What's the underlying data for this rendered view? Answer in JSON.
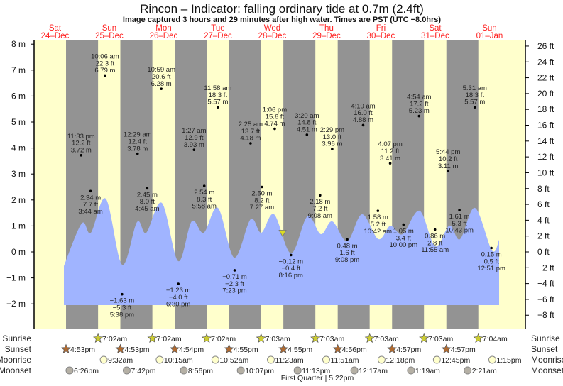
{
  "title": "Rincon – Indicator: falling  ordinary tide at 0.7m (2.4ft)",
  "subtitle": "Image captured 3 hours and 29 minutes after high water. Times are PST (UTC −8.0hrs)",
  "days": [
    {
      "dow": "Sat",
      "date": "24–Dec"
    },
    {
      "dow": "Sun",
      "date": "25–Dec"
    },
    {
      "dow": "Mon",
      "date": "26–Dec"
    },
    {
      "dow": "Tue",
      "date": "27–Dec"
    },
    {
      "dow": "Wed",
      "date": "28–Dec"
    },
    {
      "dow": "Thu",
      "date": "29–Dec"
    },
    {
      "dow": "Fri",
      "date": "30–Dec"
    },
    {
      "dow": "Sat",
      "date": "31–Dec"
    },
    {
      "dow": "Sun",
      "date": "01–Jan"
    }
  ],
  "chart_data": {
    "type": "area",
    "title": "Rincon – Indicator: falling  ordinary tide at 0.7m (2.4ft)",
    "ylim_m": [
      -2.2,
      8.2
    ],
    "y_ticks_m": [
      -2,
      -1,
      0,
      1,
      2,
      3,
      4,
      5,
      6,
      7,
      8
    ],
    "y_ticks_ft": [
      -8,
      -6,
      -4,
      -2,
      0,
      2,
      4,
      6,
      8,
      10,
      12,
      14,
      16,
      18,
      20,
      22,
      24,
      26
    ],
    "grid": false,
    "indicator": {
      "day": 4,
      "time": "4:35 pm",
      "m": 0.7,
      "ft": 2.4,
      "state": "falling"
    },
    "tides": [
      {
        "day": 0,
        "time": "11:33 pm",
        "ft": "12.2 ft",
        "m": 3.72,
        "type": "high"
      },
      {
        "day": 1,
        "time": "3:44 am",
        "ft": "7.7 ft",
        "m": 2.34,
        "type": "low"
      },
      {
        "day": 1,
        "time": "10:06 am",
        "ft": "22.3 ft",
        "m": 6.79,
        "type": "high"
      },
      {
        "day": 1,
        "time": "5:38 pm",
        "ft": "−5.3 ft",
        "m": -1.63,
        "type": "low"
      },
      {
        "day": 2,
        "time": "12:29 am",
        "ft": "12.4 ft",
        "m": 3.78,
        "type": "high"
      },
      {
        "day": 2,
        "time": "4:45 am",
        "ft": "8.0 ft",
        "m": 2.45,
        "type": "low"
      },
      {
        "day": 2,
        "time": "10:59 am",
        "ft": "20.6 ft",
        "m": 6.28,
        "type": "high"
      },
      {
        "day": 2,
        "time": "6:30 pm",
        "ft": "−4.0 ft",
        "m": -1.23,
        "type": "low"
      },
      {
        "day": 3,
        "time": "1:27 am",
        "ft": "12.9 ft",
        "m": 3.93,
        "type": "high"
      },
      {
        "day": 3,
        "time": "5:58 am",
        "ft": "8.3 ft",
        "m": 2.54,
        "type": "low"
      },
      {
        "day": 3,
        "time": "11:58 am",
        "ft": "18.3 ft",
        "m": 5.57,
        "type": "high"
      },
      {
        "day": 3,
        "time": "7:23 pm",
        "ft": "−2.3 ft",
        "m": -0.71,
        "type": "low"
      },
      {
        "day": 4,
        "time": "2:25 am",
        "ft": "13.7 ft",
        "m": 4.18,
        "type": "high"
      },
      {
        "day": 4,
        "time": "7:27 am",
        "ft": "8.2 ft",
        "m": 2.5,
        "type": "low"
      },
      {
        "day": 4,
        "time": "1:06 pm",
        "ft": "15.6 ft",
        "m": 4.74,
        "type": "high"
      },
      {
        "day": 4,
        "time": "8:16 pm",
        "ft": "−0.4 ft",
        "m": -0.12,
        "type": "low"
      },
      {
        "day": 5,
        "time": "3:20 am",
        "ft": "14.8 ft",
        "m": 4.51,
        "type": "high"
      },
      {
        "day": 5,
        "time": "9:08 am",
        "ft": "7.2 ft",
        "m": 2.18,
        "type": "low"
      },
      {
        "day": 5,
        "time": "2:29 pm",
        "ft": "13.0 ft",
        "m": 3.96,
        "type": "high"
      },
      {
        "day": 5,
        "time": "9:08 pm",
        "ft": "1.6 ft",
        "m": 0.48,
        "type": "low"
      },
      {
        "day": 6,
        "time": "4:10 am",
        "ft": "16.0 ft",
        "m": 4.88,
        "type": "high"
      },
      {
        "day": 6,
        "time": "10:42 am",
        "ft": "5.2 ft",
        "m": 1.58,
        "type": "low"
      },
      {
        "day": 6,
        "time": "4:07 pm",
        "ft": "11.2 ft",
        "m": 3.41,
        "type": "high"
      },
      {
        "day": 6,
        "time": "10:00 pm",
        "ft": "3.4 ft",
        "m": 1.05,
        "type": "low"
      },
      {
        "day": 7,
        "time": "4:54 am",
        "ft": "17.2 ft",
        "m": 5.23,
        "type": "high"
      },
      {
        "day": 7,
        "time": "11:55 am",
        "ft": "2.8 ft",
        "m": 0.86,
        "type": "low"
      },
      {
        "day": 7,
        "time": "5:44 pm",
        "ft": "10.2 ft",
        "m": 3.11,
        "type": "high"
      },
      {
        "day": 7,
        "time": "10:43 pm",
        "ft": "5.3 ft",
        "m": 1.61,
        "type": "low"
      },
      {
        "day": 8,
        "time": "5:31 am",
        "ft": "18.3 ft",
        "m": 5.57,
        "type": "high"
      },
      {
        "day": 8,
        "time": "12:51 pm",
        "ft": "0.5 ft",
        "m": 0.15,
        "type": "low"
      }
    ]
  },
  "rows": {
    "sunrise": {
      "label": "Sunrise",
      "events": [
        {
          "day": 1,
          "time": "7:02am"
        },
        {
          "day": 2,
          "time": "7:02am"
        },
        {
          "day": 3,
          "time": "7:02am"
        },
        {
          "day": 4,
          "time": "7:03am"
        },
        {
          "day": 5,
          "time": "7:03am"
        },
        {
          "day": 6,
          "time": "7:03am"
        },
        {
          "day": 7,
          "time": "7:03am"
        },
        {
          "day": 8,
          "time": "7:04am"
        }
      ]
    },
    "sunset": {
      "label": "Sunset",
      "events": [
        {
          "day": 0,
          "time": "4:53pm"
        },
        {
          "day": 1,
          "time": "4:53pm"
        },
        {
          "day": 2,
          "time": "4:54pm"
        },
        {
          "day": 3,
          "time": "4:55pm"
        },
        {
          "day": 4,
          "time": "4:55pm"
        },
        {
          "day": 5,
          "time": "4:56pm"
        },
        {
          "day": 6,
          "time": "4:57pm"
        },
        {
          "day": 7,
          "time": "4:57pm"
        }
      ]
    },
    "moonrise": {
      "label": "Moonrise",
      "events": [
        {
          "day": 1,
          "time": "9:32am"
        },
        {
          "day": 2,
          "time": "10:15am"
        },
        {
          "day": 3,
          "time": "10:52am"
        },
        {
          "day": 4,
          "time": "11:23am"
        },
        {
          "day": 5,
          "time": "11:51am"
        },
        {
          "day": 6,
          "time": "12:18pm"
        },
        {
          "day": 7,
          "time": "12:45pm"
        },
        {
          "day": 8,
          "time": "1:15pm"
        }
      ]
    },
    "moonset": {
      "label": "Moonset",
      "events": [
        {
          "day": 0,
          "time": "6:26pm"
        },
        {
          "day": 1,
          "time": "7:42pm"
        },
        {
          "day": 2,
          "time": "8:56pm"
        },
        {
          "day": 3,
          "time": "10:07pm"
        },
        {
          "day": 4,
          "time": "11:13pm"
        },
        {
          "day": 6,
          "time": "12:17am"
        },
        {
          "day": 7,
          "time": "1:19am"
        },
        {
          "day": 8,
          "time": "2:21am"
        }
      ]
    }
  },
  "moon_phase": "First Quarter | 5:22pm",
  "colors": {
    "day": "#ffffcc",
    "night": "#939393",
    "water": "#a0b4ff",
    "day_label": "#ff2020",
    "sunrise": "#cccc33",
    "sunset": "#b06a30",
    "moonrise": "#ffffcc",
    "moonset": "#b5b0a5",
    "indicator": "#dddd22"
  }
}
